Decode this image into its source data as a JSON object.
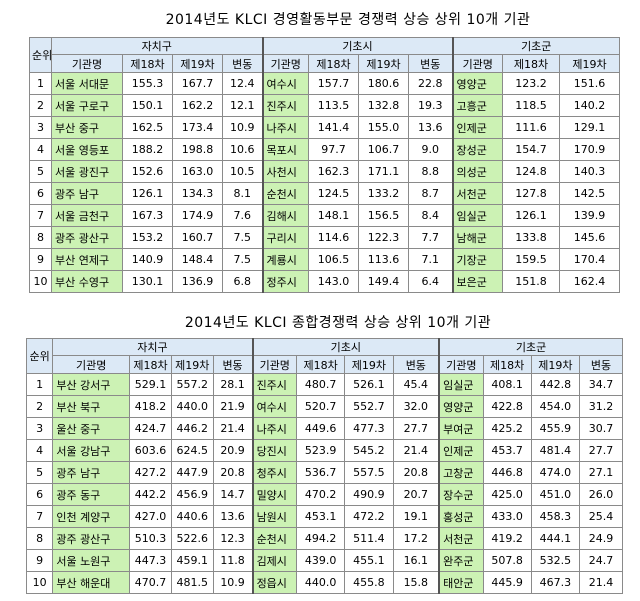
{
  "table1": {
    "title": "2014년도 KLCI 경영활동부문 경쟁력 상승 상위 10개 기관",
    "rank_label": "순위",
    "groups": [
      "자치구",
      "기초시",
      "기초군"
    ],
    "sub_headers": [
      "기관명",
      "제18차",
      "제19차",
      "변동"
    ],
    "sub_headers_gun": [
      "기관명",
      "제18차",
      "제19차"
    ],
    "rows": [
      {
        "rank": "1",
        "g1": [
          "서울 서대문",
          "155.3",
          "167.7",
          "12.4"
        ],
        "g2": [
          "여수시",
          "157.7",
          "180.6",
          "22.8"
        ],
        "g3": [
          "영양군",
          "123.2",
          "151.6"
        ]
      },
      {
        "rank": "2",
        "g1": [
          "서울 구로구",
          "150.1",
          "162.2",
          "12.1"
        ],
        "g2": [
          "진주시",
          "113.5",
          "132.8",
          "19.3"
        ],
        "g3": [
          "고흥군",
          "118.5",
          "140.2"
        ]
      },
      {
        "rank": "3",
        "g1": [
          "부산 중구",
          "162.5",
          "173.4",
          "10.9"
        ],
        "g2": [
          "나주시",
          "141.4",
          "155.0",
          "13.6"
        ],
        "g3": [
          "인제군",
          "111.6",
          "129.1"
        ]
      },
      {
        "rank": "4",
        "g1": [
          "서울 영등포",
          "188.2",
          "198.8",
          "10.6"
        ],
        "g2": [
          "목포시",
          "97.7",
          "106.7",
          "9.0"
        ],
        "g3": [
          "장성군",
          "154.7",
          "170.9"
        ]
      },
      {
        "rank": "5",
        "g1": [
          "서울 광진구",
          "152.6",
          "163.0",
          "10.5"
        ],
        "g2": [
          "사천시",
          "162.3",
          "171.1",
          "8.8"
        ],
        "g3": [
          "의성군",
          "124.8",
          "140.3"
        ]
      },
      {
        "rank": "6",
        "g1": [
          "광주 남구",
          "126.1",
          "134.3",
          "8.1"
        ],
        "g2": [
          "순천시",
          "124.5",
          "133.2",
          "8.7"
        ],
        "g3": [
          "서천군",
          "127.8",
          "142.5"
        ]
      },
      {
        "rank": "7",
        "g1": [
          "서울 금천구",
          "167.3",
          "174.9",
          "7.6"
        ],
        "g2": [
          "김해시",
          "148.1",
          "156.5",
          "8.4"
        ],
        "g3": [
          "임실군",
          "126.1",
          "139.9"
        ]
      },
      {
        "rank": "8",
        "g1": [
          "광주 광산구",
          "153.2",
          "160.7",
          "7.5"
        ],
        "g2": [
          "구리시",
          "114.6",
          "122.3",
          "7.7"
        ],
        "g3": [
          "남해군",
          "133.8",
          "145.6"
        ]
      },
      {
        "rank": "9",
        "g1": [
          "부산 연제구",
          "140.9",
          "148.4",
          "7.5"
        ],
        "g2": [
          "계룡시",
          "106.5",
          "113.6",
          "7.1"
        ],
        "g3": [
          "기장군",
          "159.5",
          "170.4"
        ]
      },
      {
        "rank": "10",
        "g1": [
          "부산 수영구",
          "130.1",
          "136.9",
          "6.8"
        ],
        "g2": [
          "정주시",
          "143.0",
          "149.4",
          "6.4"
        ],
        "g3": [
          "보은군",
          "151.8",
          "162.4"
        ]
      }
    ]
  },
  "table2": {
    "title": "2014년도 KLCI 종합경쟁력 상승 상위 10개 기관",
    "rank_label": "순위",
    "groups": [
      "자치구",
      "기초시",
      "기초군"
    ],
    "sub_headers": [
      "기관명",
      "제18차",
      "제19차",
      "변동"
    ],
    "rows": [
      {
        "rank": "1",
        "g1": [
          "부산 강서구",
          "529.1",
          "557.2",
          "28.1"
        ],
        "g2": [
          "진주시",
          "480.7",
          "526.1",
          "45.4"
        ],
        "g3": [
          "임실군",
          "408.1",
          "442.8",
          "34.7"
        ]
      },
      {
        "rank": "2",
        "g1": [
          "부산 북구",
          "418.2",
          "440.0",
          "21.9"
        ],
        "g2": [
          "여수시",
          "520.7",
          "552.7",
          "32.0"
        ],
        "g3": [
          "영양군",
          "422.8",
          "454.0",
          "31.2"
        ]
      },
      {
        "rank": "3",
        "g1": [
          "울산 중구",
          "424.7",
          "446.2",
          "21.4"
        ],
        "g2": [
          "나주시",
          "449.6",
          "477.3",
          "27.7"
        ],
        "g3": [
          "부여군",
          "425.2",
          "455.9",
          "30.7"
        ]
      },
      {
        "rank": "4",
        "g1": [
          "서울 강남구",
          "603.6",
          "624.5",
          "20.9"
        ],
        "g2": [
          "당진시",
          "523.9",
          "545.2",
          "21.4"
        ],
        "g3": [
          "인제군",
          "453.7",
          "481.4",
          "27.7"
        ]
      },
      {
        "rank": "5",
        "g1": [
          "광주 남구",
          "427.2",
          "447.9",
          "20.8"
        ],
        "g2": [
          "청주시",
          "536.7",
          "557.5",
          "20.8"
        ],
        "g3": [
          "고창군",
          "446.8",
          "474.0",
          "27.1"
        ]
      },
      {
        "rank": "6",
        "g1": [
          "광주 동구",
          "442.2",
          "456.9",
          "14.7"
        ],
        "g2": [
          "밀양시",
          "470.2",
          "490.9",
          "20.7"
        ],
        "g3": [
          "장수군",
          "425.0",
          "451.0",
          "26.0"
        ]
      },
      {
        "rank": "7",
        "g1": [
          "인천 계양구",
          "427.0",
          "440.6",
          "13.6"
        ],
        "g2": [
          "남원시",
          "453.1",
          "472.2",
          "19.1"
        ],
        "g3": [
          "홍성군",
          "433.0",
          "458.3",
          "25.4"
        ]
      },
      {
        "rank": "8",
        "g1": [
          "광주 광산구",
          "510.3",
          "522.6",
          "12.3"
        ],
        "g2": [
          "순천시",
          "494.2",
          "511.4",
          "17.2"
        ],
        "g3": [
          "서천군",
          "419.2",
          "444.1",
          "24.9"
        ]
      },
      {
        "rank": "9",
        "g1": [
          "서울 노원구",
          "447.3",
          "459.1",
          "11.8"
        ],
        "g2": [
          "김제시",
          "439.0",
          "455.1",
          "16.1"
        ],
        "g3": [
          "완주군",
          "507.8",
          "532.5",
          "24.7"
        ]
      },
      {
        "rank": "10",
        "g1": [
          "부산 해운대",
          "470.7",
          "481.5",
          "10.9"
        ],
        "g2": [
          "정읍시",
          "440.0",
          "455.8",
          "15.8"
        ],
        "g3": [
          "태안군",
          "445.9",
          "467.3",
          "21.4"
        ]
      }
    ]
  }
}
